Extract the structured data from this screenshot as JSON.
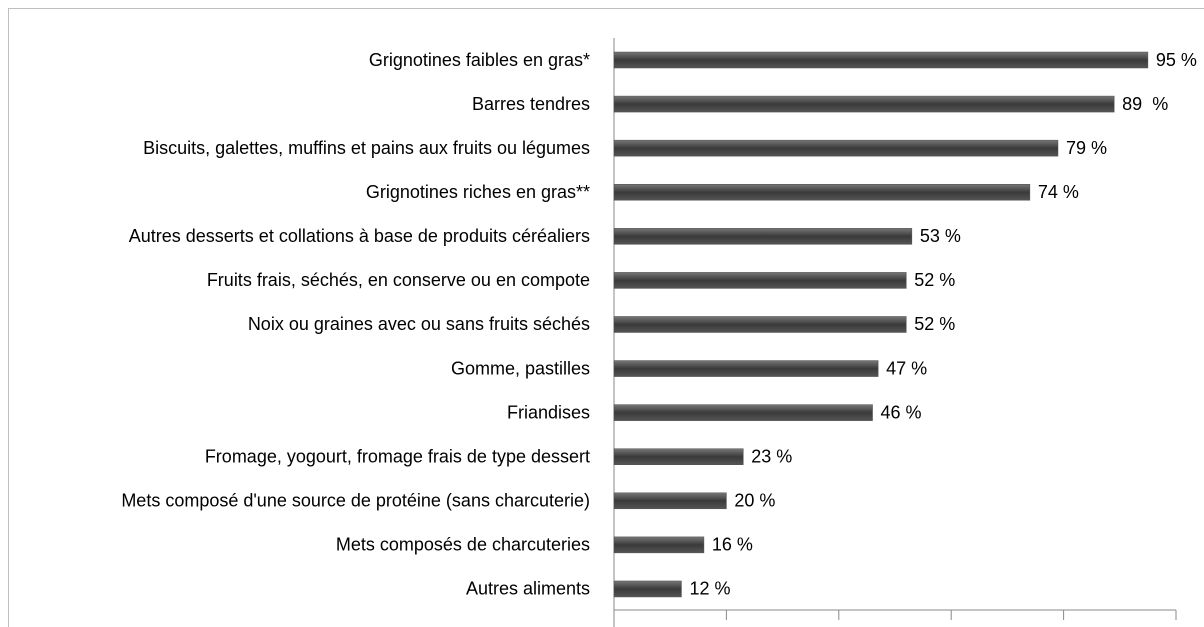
{
  "chart_data": {
    "type": "bar",
    "orientation": "horizontal",
    "categories": [
      "Grignotines faibles en gras*",
      "Barres tendres",
      "Biscuits, galettes, muffins et pains aux fruits ou légumes",
      "Grignotines riches en gras**",
      "Autres desserts et collations à base de produits céréaliers",
      "Fruits frais, séchés, en conserve ou en compote",
      "Noix ou graines avec ou sans fruits séchés",
      "Gomme, pastilles",
      "Friandises",
      "Fromage, yogourt, fromage frais de type dessert",
      "Mets composé d'une source de protéine (sans charcuterie)",
      "Mets composés de charcuteries",
      "Autres aliments"
    ],
    "values": [
      95,
      89,
      79,
      74,
      53,
      52,
      52,
      47,
      46,
      23,
      20,
      16,
      12
    ],
    "value_labels": [
      "95 %",
      "89  %",
      "79 %",
      "74 %",
      "53 %",
      "52 %",
      "52 %",
      "47 %",
      "46 %",
      "23 %",
      "20 %",
      "16 %",
      "12 %"
    ],
    "color": "#4d4d4d",
    "xlim": [
      0,
      100
    ],
    "xticks": [
      0,
      20,
      40,
      60,
      80,
      100
    ]
  }
}
